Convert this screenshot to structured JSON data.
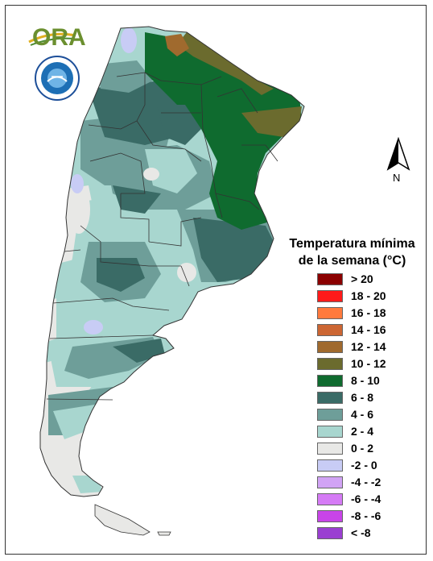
{
  "logo": {
    "text": "ORA"
  },
  "north_arrow": {
    "label": "N"
  },
  "legend": {
    "title_line1": "Temperatura mínima",
    "title_line2": "de la semana (°C)",
    "items": [
      {
        "label": "> 20",
        "color": "#8b0000"
      },
      {
        "label": "18 - 20",
        "color": "#ff1a1a"
      },
      {
        "label": "16 - 18",
        "color": "#ff7a3d"
      },
      {
        "label": "14 - 16",
        "color": "#cc6633"
      },
      {
        "label": "12 - 14",
        "color": "#a06a2e"
      },
      {
        "label": "10 - 12",
        "color": "#6b6b2e"
      },
      {
        "label": "8 - 10",
        "color": "#0f6b2f"
      },
      {
        "label": "6 - 8",
        "color": "#3a6b66"
      },
      {
        "label": "4 - 6",
        "color": "#6e9e99"
      },
      {
        "label": "2 - 4",
        "color": "#a8d6cf"
      },
      {
        "label": "0 - 2",
        "color": "#e8e8e6"
      },
      {
        "label": "-2 - 0",
        "color": "#c8ccf5"
      },
      {
        "label": "-4 - -2",
        "color": "#d1a3f5"
      },
      {
        "label": "-6 - -4",
        "color": "#d57bf5"
      },
      {
        "label": "-8 - -6",
        "color": "#c844e8"
      },
      {
        "label": "< -8",
        "color": "#9a3fd1"
      }
    ]
  }
}
